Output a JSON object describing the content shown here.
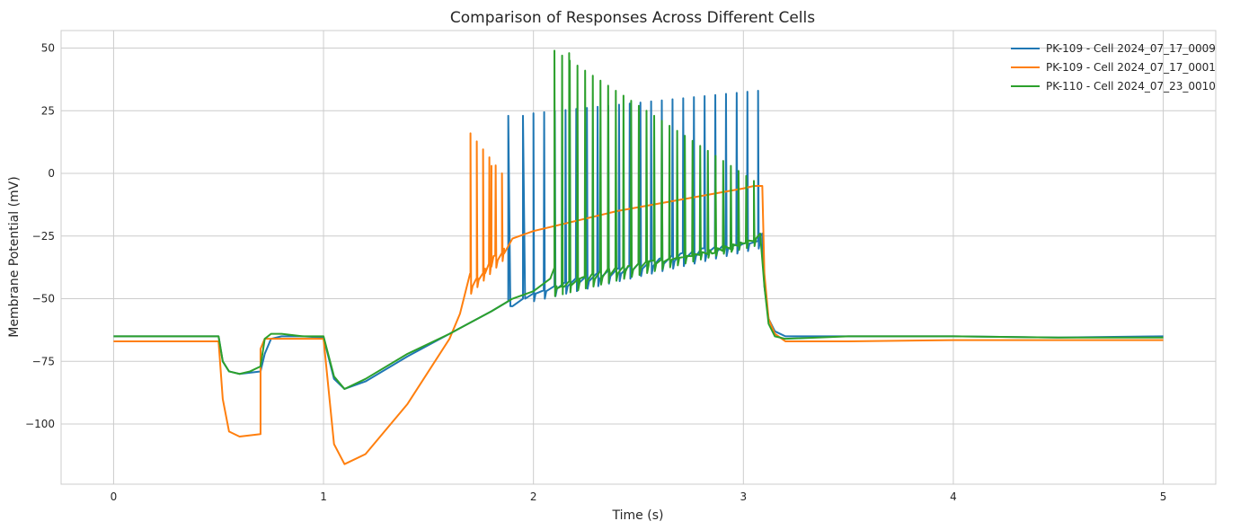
{
  "chart_data": {
    "type": "line",
    "title": "Comparison of Responses Across Different Cells",
    "xlabel": "Time (s)",
    "ylabel": "Membrane Potential (mV)",
    "xlim": [
      -0.25,
      5.25
    ],
    "ylim": [
      -124,
      57
    ],
    "xticks": [
      0,
      1,
      2,
      3,
      4,
      5
    ],
    "xtick_labels": [
      "0",
      "1",
      "2",
      "3",
      "4",
      "5"
    ],
    "yticks": [
      -100,
      -75,
      -50,
      -25,
      0,
      25,
      50
    ],
    "ytick_labels": [
      "−100",
      "−75",
      "−50",
      "−25",
      "0",
      "25",
      "50"
    ],
    "grid": true,
    "legend": "top-right",
    "series": [
      {
        "name": "PK-109 - Cell 2024_07_17_0009",
        "color": "#1f77b4",
        "x": [
          0,
          0.5,
          0.52,
          0.55,
          0.6,
          0.65,
          0.7,
          0.72,
          0.75,
          0.8,
          0.9,
          1.0,
          1.05,
          1.1,
          1.2,
          1.4,
          1.6,
          1.8,
          1.88,
          1.88,
          1.89,
          1.9,
          1.95,
          1.95,
          1.96,
          2.0,
          2.0,
          2.01,
          2.1,
          2.2,
          2.3,
          2.4,
          2.5,
          2.6,
          2.7,
          2.8,
          2.9,
          3.0,
          3.07,
          3.07,
          3.08,
          3.09,
          3.1,
          3.12,
          3.15,
          3.2,
          3.5,
          4.0,
          4.5,
          5.0
        ],
        "y": [
          -65,
          -65,
          -75,
          -79,
          -80,
          -79.5,
          -79,
          -72,
          -66,
          -65,
          -65,
          -65.5,
          -82,
          -86,
          -83,
          -73,
          -64,
          -55,
          -51,
          23,
          -53,
          -53,
          -50,
          23,
          -50,
          -48,
          24,
          -48,
          -45,
          -42,
          -40,
          -38,
          -36,
          -34,
          -32,
          -30,
          -29,
          -28,
          -27,
          33,
          -25,
          -24,
          -45,
          -58,
          -63,
          -65,
          -65,
          -65,
          -65.5,
          -65
        ]
      },
      {
        "name": "PK-109 - Cell 2024_07_17_0001",
        "color": "#ff7f0e",
        "x": [
          0,
          0.5,
          0.52,
          0.55,
          0.6,
          0.65,
          0.7,
          0.7,
          0.72,
          0.75,
          0.8,
          0.9,
          1.0,
          1.05,
          1.1,
          1.2,
          1.4,
          1.6,
          1.65,
          1.7,
          1.7,
          1.71,
          1.73,
          1.73,
          1.74,
          1.76,
          1.76,
          1.77,
          1.8,
          1.8,
          1.81,
          1.85,
          1.85,
          1.86,
          1.9,
          2.0,
          2.2,
          2.4,
          2.6,
          2.8,
          3.0,
          3.05,
          3.09,
          3.1,
          3.12,
          3.15,
          3.2,
          3.5,
          4.0,
          4.5,
          5.0
        ],
        "y": [
          -67,
          -67,
          -90,
          -103,
          -105,
          -104.5,
          -104,
          -70,
          -66,
          -66,
          -66,
          -66,
          -66,
          -108,
          -116,
          -112,
          -92,
          -66,
          -56,
          -40,
          16,
          -45,
          -42,
          12,
          -42,
          -40,
          8,
          -38,
          -35,
          3,
          -33,
          -32,
          0,
          -30,
          -26,
          -23,
          -19,
          -15,
          -12,
          -9,
          -6,
          -5,
          -5,
          -40,
          -58,
          -64,
          -67,
          -67,
          -66.5,
          -66.5,
          -66.5
        ]
      },
      {
        "name": "PK-110 - Cell 2024_07_23_0010",
        "color": "#2ca02c",
        "x": [
          0,
          0.5,
          0.52,
          0.55,
          0.6,
          0.65,
          0.7,
          0.72,
          0.75,
          0.8,
          0.9,
          1.0,
          1.05,
          1.1,
          1.2,
          1.4,
          1.6,
          1.8,
          1.9,
          2.0,
          2.08,
          2.1,
          2.1,
          2.11,
          2.14,
          2.17,
          2.17,
          2.18,
          2.22,
          2.28,
          2.36,
          2.45,
          2.55,
          2.65,
          2.75,
          2.85,
          2.95,
          3.0,
          3.05,
          3.07,
          3.08,
          3.1,
          3.12,
          3.15,
          3.2,
          3.5,
          4.0,
          4.5,
          5.0
        ],
        "y": [
          -65,
          -65,
          -75,
          -79,
          -80,
          -79,
          -77,
          -66,
          -64,
          -64,
          -65,
          -65,
          -81,
          -86,
          -82,
          -72,
          -64,
          -55,
          -50,
          -47,
          -42,
          -38,
          49,
          -45,
          -45,
          -43,
          48,
          -44,
          -42,
          -40,
          -38,
          -37,
          -35,
          -34,
          -33,
          -32,
          -30,
          -28,
          -27,
          -25,
          -24,
          -45,
          -60,
          -65,
          -66,
          -65,
          -65,
          -65.5,
          -65.5
        ]
      }
    ],
    "spikes": [
      {
        "series": 0,
        "start": 2.0,
        "end": 3.07,
        "count": 22,
        "peak_start": 24,
        "peak_end": 33,
        "trough_start": -48,
        "trough_end": -27
      },
      {
        "series": 2,
        "start": 2.1,
        "end": 3.05,
        "count": 27,
        "peak_start": 49,
        "peak_end": -3,
        "trough_start": -46,
        "trough_end": -26
      },
      {
        "series": 1,
        "start": 1.7,
        "end": 1.85,
        "count": 6,
        "peak_start": 16,
        "peak_end": 0,
        "trough_start": -45,
        "trough_end": -32
      }
    ]
  }
}
